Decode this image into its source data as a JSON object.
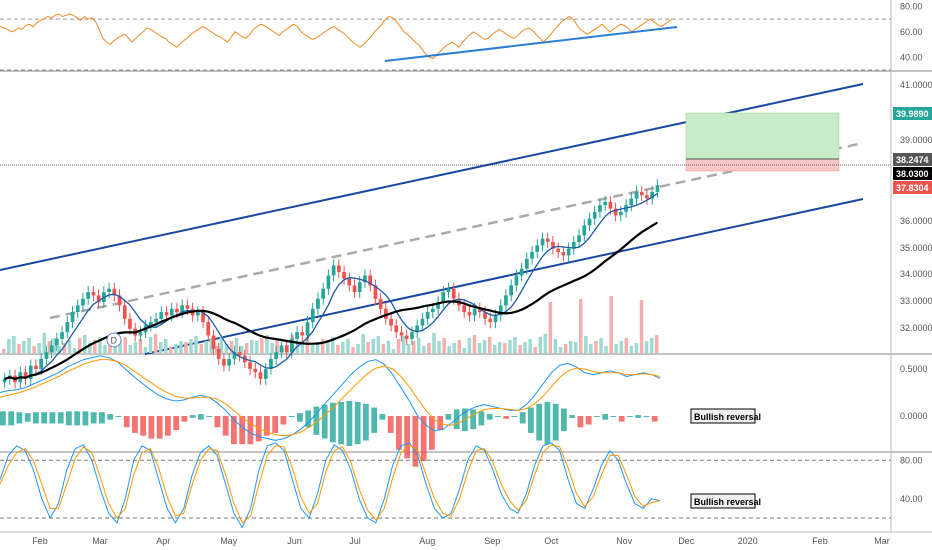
{
  "chart_data": [
    {
      "panel": "rsi",
      "type": "line",
      "yticks": [
        80,
        60,
        40
      ],
      "ytick_labels": [
        "80.00",
        "60.00",
        "40.00"
      ],
      "reference_lines": [
        70,
        30
      ],
      "series": [
        {
          "values": [
            64,
            63,
            62,
            60,
            61,
            63,
            62,
            65,
            66,
            64,
            67,
            69,
            70,
            72,
            71,
            73,
            74,
            72,
            73,
            74,
            73,
            71,
            69,
            72,
            70,
            71,
            68,
            62,
            55,
            52,
            50,
            53,
            55,
            57,
            58,
            55,
            52,
            55,
            58,
            60,
            63,
            62,
            60,
            58,
            56,
            55,
            52,
            50,
            48,
            50,
            53,
            55,
            58,
            60,
            62,
            64,
            63,
            61,
            59,
            57,
            56,
            54,
            52,
            56,
            60,
            58,
            56,
            55,
            58,
            62,
            64,
            66,
            65,
            63,
            61,
            59,
            57,
            60,
            62,
            64,
            66,
            64,
            60,
            58,
            56,
            54,
            55,
            57,
            59,
            61,
            63,
            64,
            62,
            60,
            58,
            55,
            52,
            50,
            48,
            50,
            53,
            56,
            60,
            63,
            66,
            70,
            72,
            71,
            68,
            64,
            60,
            58,
            55,
            52,
            50,
            46,
            42,
            40,
            39,
            42,
            45,
            48,
            50,
            52,
            50,
            48,
            52,
            55,
            58,
            60,
            58,
            56,
            54,
            55,
            58,
            60,
            62,
            60,
            58,
            56,
            55,
            57,
            60,
            62,
            63,
            61,
            58,
            55,
            52,
            55,
            58,
            62,
            65,
            68,
            70,
            72,
            70,
            66,
            62,
            60,
            58,
            60,
            62,
            64,
            66,
            63,
            60,
            62,
            64,
            66,
            65,
            63,
            60,
            62,
            64,
            66,
            68,
            70,
            68,
            66,
            64,
            66,
            68,
            70
          ]
        }
      ],
      "trendline": {
        "from": {
          "date": "2019-07-10",
          "value": 36
        },
        "to": {
          "date": "2019-11-25",
          "value": 60
        }
      }
    },
    {
      "panel": "price",
      "type": "candlestick",
      "yticks": [
        41,
        39,
        36,
        35,
        34,
        33,
        32
      ],
      "ytick_labels": [
        "41.0000",
        "39.0000",
        "36.0000",
        "35.0000",
        "34.0000",
        "33.0000",
        "32.0000"
      ],
      "price_tags": [
        {
          "label": "39.9890",
          "color": "#26a69a"
        },
        {
          "label": "38.2474",
          "color": "#555555"
        },
        {
          "label": "38.0300",
          "color": "#000000"
        },
        {
          "label": "37.8304",
          "color": "#ef5350"
        }
      ],
      "closes": [
        32.2,
        32.3,
        32.1,
        32.4,
        32.2,
        32.6,
        32.5,
        32.8,
        33.0,
        33.2,
        33.4,
        33.6,
        33.9,
        34.2,
        34.4,
        34.6,
        34.8,
        34.7,
        34.5,
        34.8,
        34.9,
        34.7,
        34.4,
        34.0,
        33.7,
        33.5,
        33.6,
        33.8,
        33.9,
        34.0,
        34.2,
        34.1,
        34.3,
        34.2,
        34.4,
        34.3,
        34.1,
        34.2,
        33.9,
        33.5,
        33.1,
        32.8,
        32.6,
        32.8,
        33.0,
        32.9,
        32.7,
        32.5,
        32.4,
        32.2,
        32.5,
        32.8,
        33.0,
        33.2,
        33.0,
        33.4,
        33.6,
        33.5,
        33.9,
        34.3,
        34.6,
        34.9,
        35.3,
        35.6,
        35.4,
        35.2,
        35.0,
        34.8,
        35.1,
        35.3,
        35.0,
        34.6,
        34.3,
        34.0,
        33.8,
        33.6,
        33.5,
        33.4,
        33.6,
        33.8,
        34.0,
        34.2,
        34.3,
        34.5,
        34.8,
        34.9,
        34.6,
        34.4,
        34.2,
        34.1,
        34.3,
        34.2,
        34.0,
        33.9,
        34.1,
        34.4,
        34.7,
        35.0,
        35.3,
        35.5,
        35.8,
        36.0,
        36.2,
        36.4,
        36.3,
        36.1,
        36.0,
        35.9,
        36.1,
        36.3,
        36.5,
        36.8,
        37.0,
        37.2,
        37.4,
        37.5,
        37.3,
        37.1,
        37.2,
        37.4,
        37.6,
        37.8,
        37.7,
        37.6,
        37.8,
        38.0
      ],
      "volume_bars": 130,
      "sma_slow_end": 36.3,
      "channel": {
        "upper": [
          {
            "date": "2019-01-01",
            "value": 34.1
          },
          {
            "date": "2020-03-10",
            "value": 41.1
          }
        ],
        "lower": [
          {
            "date": "2019-02-15",
            "value": 31.7
          },
          {
            "date": "2020-03-10",
            "value": 36.8
          }
        ],
        "midline_dashed": true
      },
      "position_box": {
        "profit_top": 39.989,
        "entry": 38.2474,
        "stop": 37.8304
      },
      "marker": "D"
    },
    {
      "panel": "macd",
      "type": "line",
      "yticks": [
        0.5,
        0.0
      ],
      "ytick_labels": [
        "0.5000",
        "0.0000"
      ],
      "annotation": "Bullish reversal",
      "macd": [
        0.25,
        0.27,
        0.28,
        0.3,
        0.34,
        0.38,
        0.42,
        0.46,
        0.52,
        0.56,
        0.6,
        0.62,
        0.64,
        0.62,
        0.58,
        0.5,
        0.42,
        0.35,
        0.28,
        0.22,
        0.18,
        0.16,
        0.17,
        0.2,
        0.22,
        0.2,
        0.14,
        0.06,
        -0.04,
        -0.12,
        -0.18,
        -0.22,
        -0.24,
        -0.26,
        -0.24,
        -0.2,
        -0.14,
        -0.06,
        0.04,
        0.14,
        0.24,
        0.34,
        0.44,
        0.52,
        0.58,
        0.6,
        0.55,
        0.44,
        0.3,
        0.16,
        0.0,
        -0.1,
        -0.16,
        -0.14,
        -0.08,
        0.0,
        0.06,
        0.1,
        0.12,
        0.1,
        0.08,
        0.06,
        0.06,
        0.12,
        0.22,
        0.34,
        0.46,
        0.54,
        0.56,
        0.52,
        0.46,
        0.44,
        0.46,
        0.48,
        0.46,
        0.42,
        0.44,
        0.46,
        0.44,
        0.4
      ],
      "signal": [
        0.2,
        0.22,
        0.24,
        0.27,
        0.3,
        0.34,
        0.38,
        0.42,
        0.47,
        0.51,
        0.55,
        0.58,
        0.6,
        0.6,
        0.58,
        0.54,
        0.48,
        0.42,
        0.36,
        0.3,
        0.25,
        0.21,
        0.19,
        0.19,
        0.2,
        0.2,
        0.18,
        0.13,
        0.06,
        -0.02,
        -0.08,
        -0.13,
        -0.17,
        -0.2,
        -0.21,
        -0.2,
        -0.17,
        -0.12,
        -0.06,
        0.02,
        0.1,
        0.19,
        0.28,
        0.37,
        0.45,
        0.51,
        0.53,
        0.5,
        0.42,
        0.31,
        0.18,
        0.06,
        -0.04,
        -0.09,
        -0.1,
        -0.07,
        -0.02,
        0.03,
        0.07,
        0.08,
        0.08,
        0.07,
        0.06,
        0.08,
        0.13,
        0.21,
        0.31,
        0.41,
        0.48,
        0.51,
        0.5,
        0.47,
        0.46,
        0.46,
        0.46,
        0.44,
        0.44,
        0.45,
        0.44,
        0.42
      ]
    },
    {
      "panel": "stochastic",
      "type": "line",
      "yticks": [
        80,
        40
      ],
      "ytick_labels": [
        "80.00",
        "40.00"
      ],
      "reference_lines": [
        80,
        20
      ],
      "annotation": "Bullish reversal",
      "k": [
        60,
        85,
        95,
        90,
        70,
        40,
        20,
        35,
        70,
        92,
        96,
        80,
        50,
        25,
        15,
        40,
        80,
        95,
        90,
        60,
        30,
        15,
        30,
        65,
        88,
        95,
        85,
        55,
        25,
        10,
        30,
        70,
        95,
        98,
        90,
        60,
        30,
        20,
        45,
        80,
        96,
        90,
        70,
        40,
        20,
        15,
        40,
        75,
        95,
        98,
        85,
        55,
        30,
        20,
        25,
        50,
        80,
        95,
        90,
        70,
        45,
        30,
        25,
        45,
        75,
        95,
        98,
        90,
        60,
        35,
        30,
        50,
        75,
        90,
        80,
        55,
        35,
        30,
        40,
        38
      ],
      "d": [
        55,
        75,
        88,
        92,
        80,
        55,
        30,
        30,
        55,
        82,
        94,
        88,
        62,
        35,
        20,
        30,
        65,
        88,
        92,
        72,
        42,
        22,
        25,
        55,
        80,
        92,
        90,
        65,
        35,
        15,
        22,
        55,
        85,
        95,
        94,
        72,
        42,
        25,
        35,
        68,
        90,
        94,
        78,
        50,
        28,
        18,
        30,
        62,
        88,
        96,
        90,
        65,
        40,
        25,
        22,
        40,
        68,
        90,
        92,
        78,
        55,
        38,
        28,
        38,
        65,
        88,
        96,
        94,
        72,
        45,
        32,
        42,
        65,
        85,
        85,
        65,
        42,
        32,
        36,
        38
      ]
    }
  ],
  "x_axis": {
    "labels": [
      "Feb",
      "Mar",
      "Apr",
      "May",
      "Jun",
      "Jul",
      "Aug",
      "Sep",
      "Oct",
      "Nov",
      "Dec",
      "2020",
      "Feb",
      "Mar"
    ]
  },
  "colors": {
    "up": "#26a69a",
    "down": "#ef5350",
    "channel": "#1848a0",
    "sma_fast": "#1c5aa8",
    "sma_slow": "#000000",
    "rsi": "#f08a24",
    "rsi_trend": "#2a7fd4",
    "macd": "#2196f3",
    "signal": "#ff9800",
    "profit_zone": "#c8ecc8",
    "stop_zone": "#f7c6c6"
  }
}
